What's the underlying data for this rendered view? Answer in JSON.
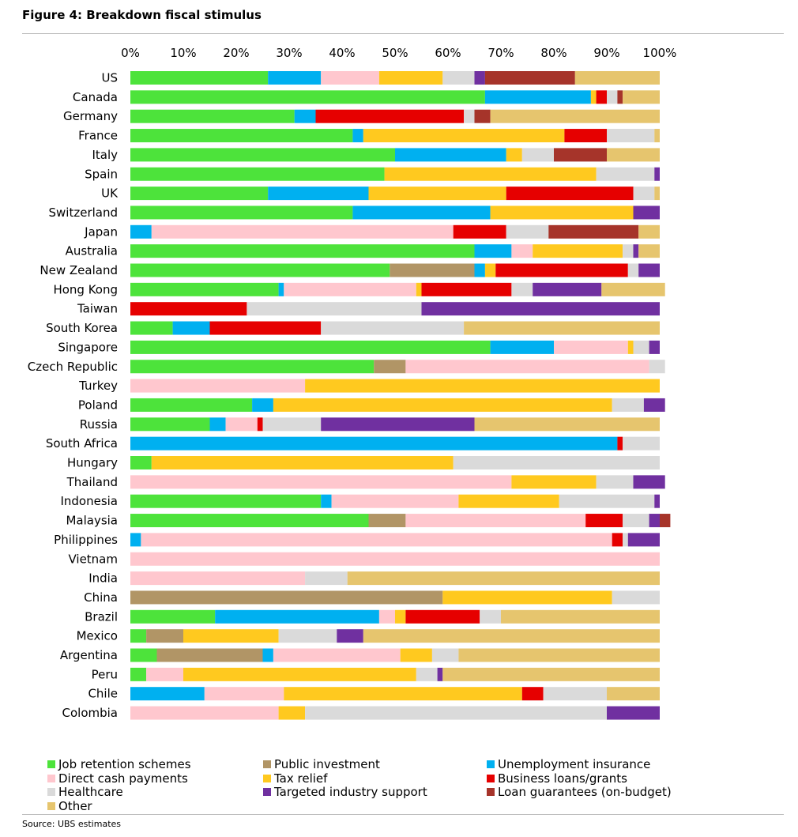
{
  "title": "Figure 4: Breakdown fiscal stimulus",
  "source": "Source:  UBS estimates",
  "categories_legend": [
    {
      "key": "job",
      "label": "Job retention schemes",
      "color": "#4de33b"
    },
    {
      "key": "pub",
      "label": "Public investment",
      "color": "#b19566"
    },
    {
      "key": "unemp",
      "label": "Unemployment insurance",
      "color": "#00b0f0"
    },
    {
      "key": "cash",
      "label": "Direct cash payments",
      "color": "#ffc7ce"
    },
    {
      "key": "tax",
      "label": "Tax relief",
      "color": "#ffc91f"
    },
    {
      "key": "biz",
      "label": "Business loans/grants",
      "color": "#e60000"
    },
    {
      "key": "health",
      "label": "Healthcare",
      "color": "#dadada"
    },
    {
      "key": "ind",
      "label": "Targeted industry support",
      "color": "#7030a0"
    },
    {
      "key": "loan",
      "label": "Loan guarantees (on-budget)",
      "color": "#a6342a"
    },
    {
      "key": "other",
      "label": "Other",
      "color": "#e6c56e"
    }
  ],
  "chart_data": {
    "type": "bar",
    "orientation": "horizontal",
    "stacked": true,
    "title": "Figure 4: Breakdown fiscal stimulus",
    "xlim": [
      0,
      100
    ],
    "xticks": [
      "0%",
      "10%",
      "20%",
      "30%",
      "40%",
      "50%",
      "60%",
      "70%",
      "80%",
      "90%",
      "100%"
    ],
    "grid": false,
    "legend_position": "bottom",
    "series_order": [
      "job",
      "pub",
      "unemp",
      "cash",
      "tax",
      "biz",
      "health",
      "ind",
      "loan",
      "other"
    ],
    "categories": [
      "US",
      "Canada",
      "Germany",
      "France",
      "Italy",
      "Spain",
      "UK",
      "Switzerland",
      "Japan",
      "Australia",
      "New Zealand",
      "Hong Kong",
      "Taiwan",
      "South Korea",
      "Singapore",
      "Czech Republic",
      "Turkey",
      "Poland",
      "Russia",
      "South Africa",
      "Hungary",
      "Thailand",
      "Indonesia",
      "Malaysia",
      "Philippines",
      "Vietnam",
      "India",
      "China",
      "Brazil",
      "Mexico",
      "Argentina",
      "Peru",
      "Chile",
      "Colombia"
    ],
    "series": [
      {
        "key": "job",
        "name": "Job retention schemes",
        "values": [
          26,
          67,
          31,
          42,
          50,
          48,
          26,
          42,
          0,
          65,
          49,
          28,
          0,
          8,
          68,
          46,
          0,
          23,
          15,
          0,
          4,
          0,
          36,
          45,
          0,
          0,
          0,
          0,
          16,
          3,
          5,
          3,
          0,
          0
        ]
      },
      {
        "key": "pub",
        "name": "Public investment",
        "values": [
          0,
          0,
          0,
          0,
          0,
          0,
          0,
          0,
          0,
          0,
          16,
          0,
          0,
          0,
          0,
          6,
          0,
          0,
          0,
          0,
          0,
          0,
          0,
          7,
          0,
          0,
          0,
          59,
          0,
          7,
          20,
          0,
          0,
          0
        ]
      },
      {
        "key": "unemp",
        "name": "Unemployment insurance",
        "values": [
          10,
          20,
          4,
          2,
          21,
          0,
          19,
          26,
          4,
          7,
          2,
          1,
          0,
          7,
          12,
          0,
          0,
          4,
          3,
          92,
          0,
          0,
          2,
          0,
          2,
          0,
          0,
          0,
          31,
          0,
          2,
          0,
          14,
          0
        ]
      },
      {
        "key": "cash",
        "name": "Direct cash payments",
        "values": [
          11,
          0,
          0,
          0,
          0,
          0,
          0,
          0,
          57,
          4,
          0,
          25,
          0,
          0,
          14,
          46,
          33,
          0,
          6,
          0,
          0,
          72,
          24,
          34,
          89,
          100,
          33,
          0,
          3,
          0,
          24,
          7,
          15,
          28
        ]
      },
      {
        "key": "tax",
        "name": "Tax relief",
        "values": [
          12,
          1,
          0,
          38,
          3,
          40,
          26,
          27,
          0,
          17,
          2,
          1,
          0,
          0,
          1,
          0,
          67,
          64,
          0,
          0,
          57,
          16,
          19,
          0,
          0,
          0,
          0,
          32,
          2,
          18,
          6,
          44,
          45,
          5
        ]
      },
      {
        "key": "biz",
        "name": "Business loans/grants",
        "values": [
          0,
          2,
          28,
          8,
          0,
          0,
          24,
          0,
          10,
          0,
          25,
          17,
          22,
          21,
          0,
          0,
          0,
          0,
          1,
          1,
          0,
          0,
          0,
          7,
          2,
          0,
          0,
          0,
          14,
          0,
          0,
          0,
          4,
          0
        ]
      },
      {
        "key": "health",
        "name": "Healthcare",
        "values": [
          6,
          2,
          2,
          9,
          6,
          11,
          4,
          0,
          8,
          2,
          2,
          4,
          33,
          27,
          3,
          3,
          0,
          6,
          11,
          7,
          39,
          7,
          18,
          5,
          1,
          0,
          8,
          9,
          4,
          11,
          5,
          4,
          12,
          57
        ]
      },
      {
        "key": "ind",
        "name": "Targeted industry support",
        "values": [
          2,
          0,
          0,
          0,
          0,
          1,
          0,
          5,
          0,
          1,
          4,
          13,
          45,
          0,
          2,
          0,
          0,
          4,
          29,
          0,
          0,
          6,
          1,
          2,
          6,
          0,
          0,
          0,
          0,
          5,
          0,
          1,
          0,
          10
        ]
      },
      {
        "key": "loan",
        "name": "Loan guarantees (on-budget)",
        "values": [
          17,
          1,
          3,
          0,
          10,
          0,
          0,
          0,
          17,
          0,
          0,
          0,
          0,
          0,
          0,
          0,
          0,
          0,
          0,
          0,
          0,
          0,
          0,
          2,
          0,
          0,
          0,
          0,
          0,
          0,
          0,
          0,
          0,
          0
        ]
      },
      {
        "key": "other",
        "name": "Other",
        "values": [
          16,
          7,
          32,
          1,
          10,
          0,
          1,
          0,
          4,
          4,
          0,
          12,
          0,
          37,
          0,
          0,
          0,
          0,
          35,
          0,
          0,
          0,
          0,
          0,
          0,
          0,
          59,
          0,
          30,
          56,
          38,
          41,
          10,
          0
        ]
      }
    ]
  }
}
